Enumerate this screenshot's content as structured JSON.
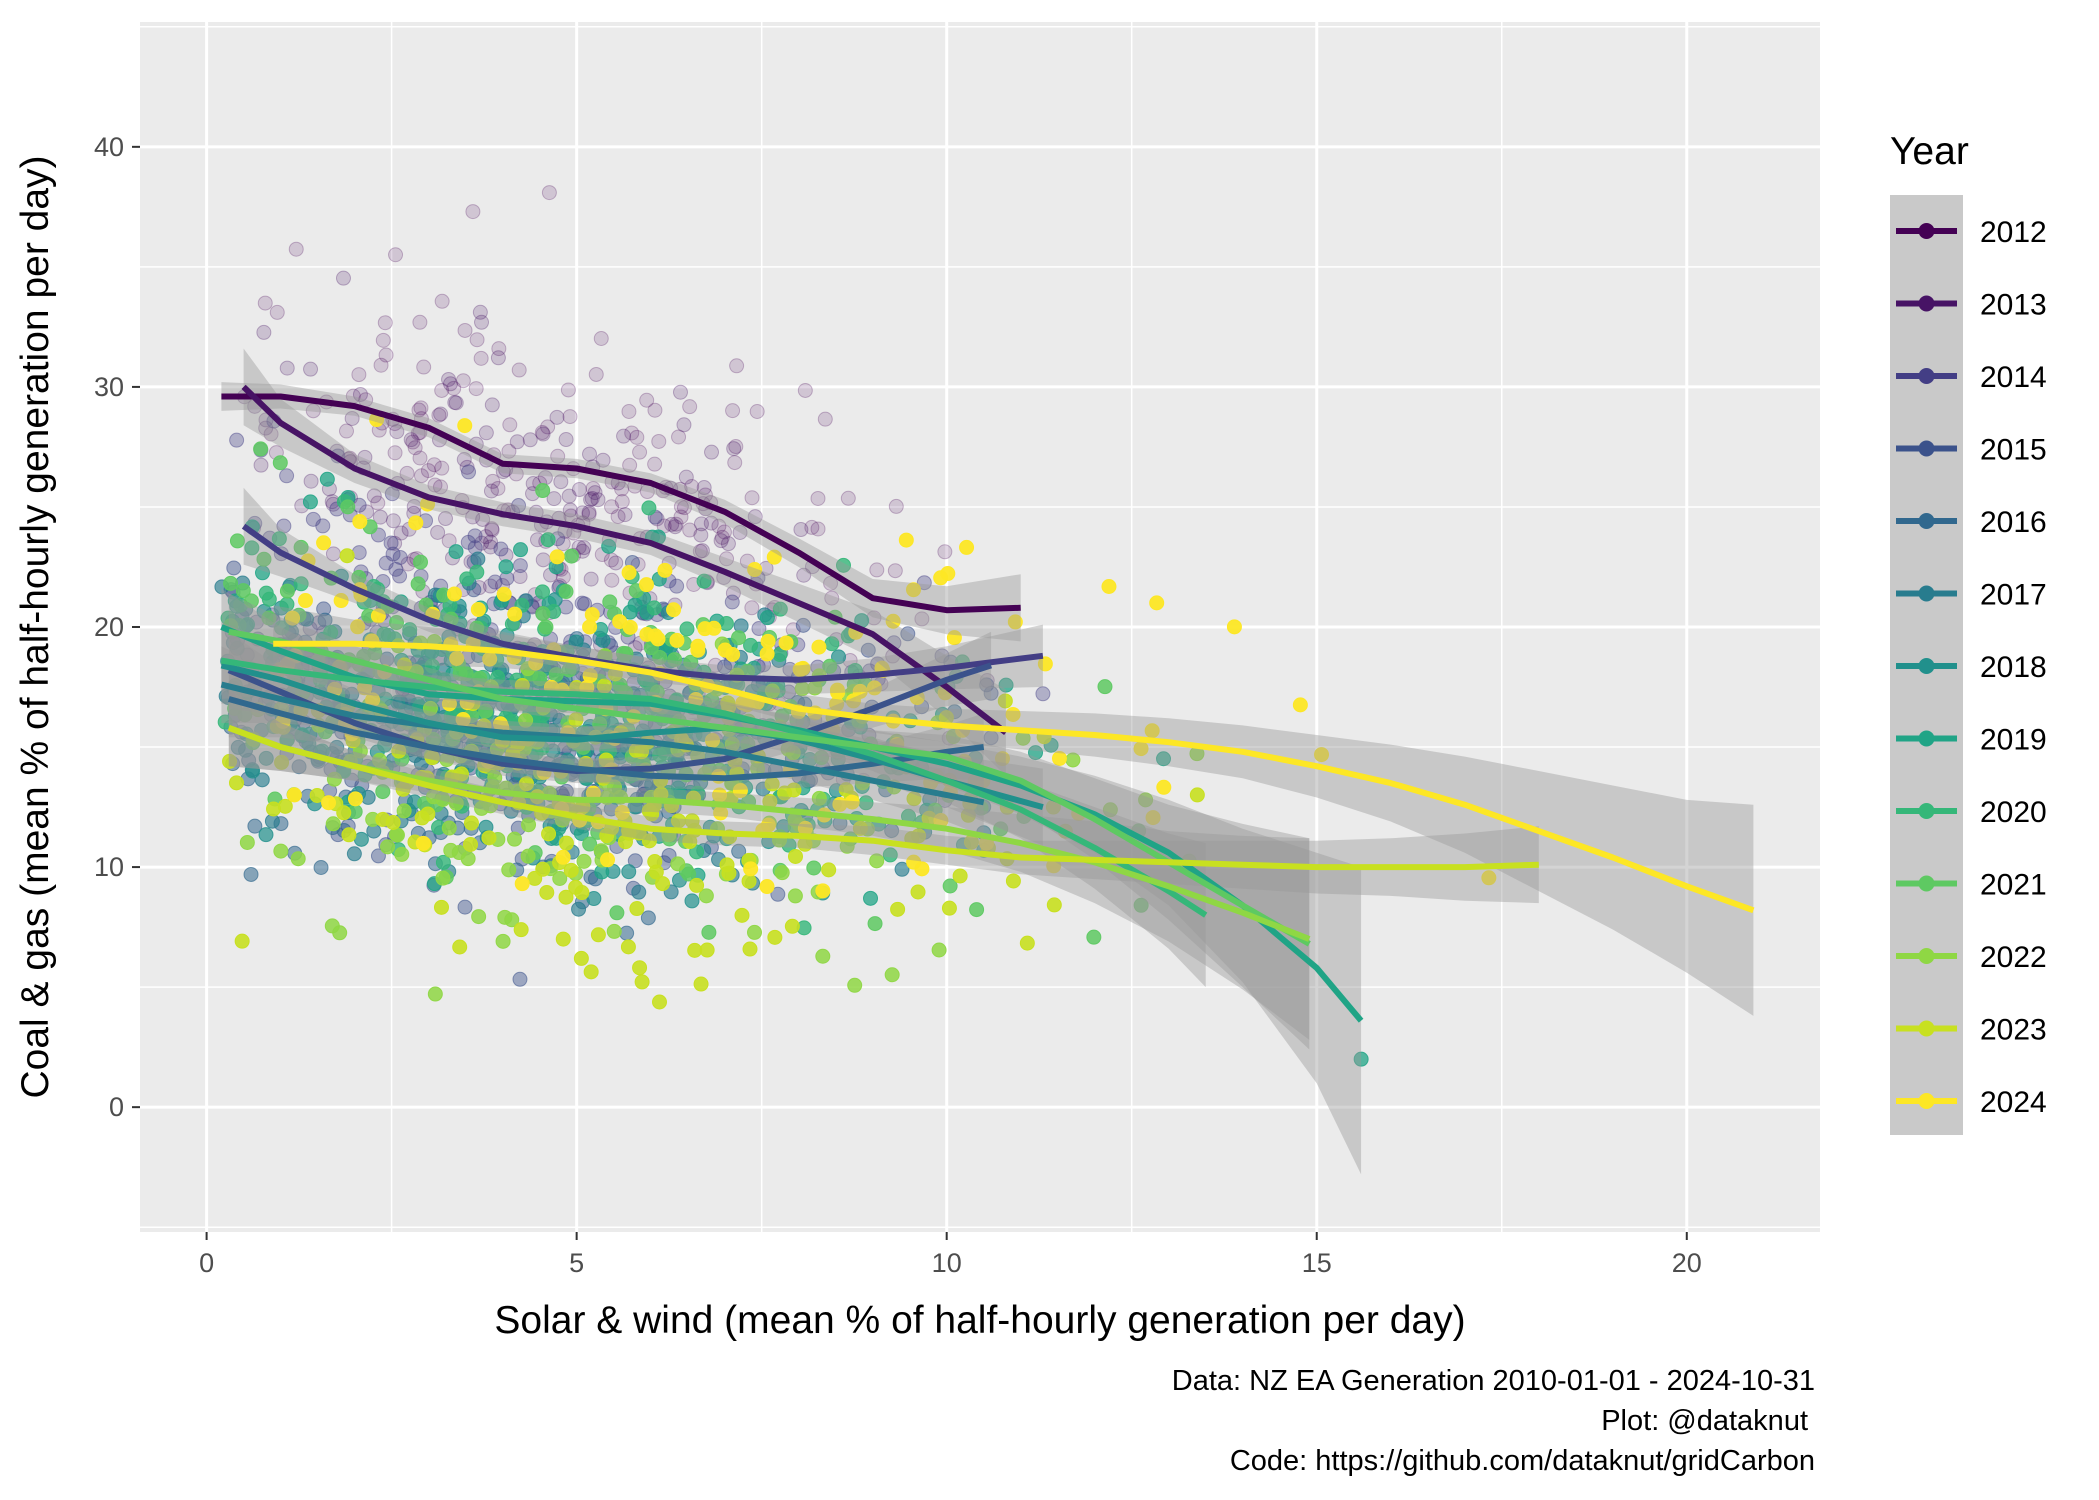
{
  "chart_data": {
    "type": "scatter",
    "title": "",
    "xlabel": "Solar & wind (mean % of half-hourly generation per day)",
    "ylabel": "Coal & gas (mean % of half-hourly generation per day)",
    "xlim": [
      -0.9,
      21.8
    ],
    "ylim": [
      -5.2,
      45.2
    ],
    "x_ticks": [
      0,
      5,
      10,
      15,
      20
    ],
    "y_ticks": [
      0,
      10,
      20,
      30,
      40
    ],
    "grid": true,
    "legend": {
      "title": "Year",
      "placement": "right",
      "entries": [
        "2012",
        "2013",
        "2014",
        "2015",
        "2016",
        "2017",
        "2018",
        "2019",
        "2020",
        "2021",
        "2022",
        "2023",
        "2024"
      ]
    },
    "caption": [
      "Data: NZ EA Generation 2010-01-01 - 2024-10-31",
      "Plot: @dataknut",
      "Code: https://github.com/dataknut/gridCarbon"
    ],
    "series": [
      {
        "name": "2012",
        "color": "#440154",
        "point_alpha": 0.16,
        "point_center": [
          4.6,
          30.0
        ],
        "point_spread": [
          2.6,
          4.6
        ],
        "point_xrange": [
          0.3,
          10.8
        ],
        "smooth": {
          "x": [
            0.2,
            1,
            2,
            3,
            4,
            5,
            6,
            7,
            8,
            9,
            10,
            11
          ],
          "y": [
            29.6,
            29.6,
            29.2,
            28.3,
            26.8,
            26.6,
            26.0,
            24.8,
            23.1,
            21.2,
            20.7,
            20.8
          ]
        },
        "se": [
          0.6,
          0.5,
          0.4,
          0.4,
          0.4,
          0.4,
          0.4,
          0.5,
          0.6,
          0.8,
          1.0,
          1.4
        ]
      },
      {
        "name": "2013",
        "color": "#471365",
        "point_alpha": 0.2,
        "point_center": [
          4.2,
          24.5
        ],
        "point_spread": [
          2.3,
          4.0
        ],
        "point_xrange": [
          0.4,
          10.6
        ],
        "smooth": {
          "x": [
            0.5,
            1,
            2,
            3,
            4,
            5,
            6,
            7,
            8,
            9,
            10,
            10.8
          ],
          "y": [
            30.0,
            28.5,
            26.6,
            25.4,
            24.7,
            24.2,
            23.5,
            22.3,
            21.0,
            19.7,
            17.5,
            15.6
          ]
        },
        "se": [
          1.6,
          1.0,
          0.6,
          0.5,
          0.5,
          0.5,
          0.5,
          0.6,
          0.8,
          1.0,
          1.3,
          1.8
        ]
      },
      {
        "name": "2014",
        "color": "#433E85",
        "point_alpha": 0.35,
        "point_center": [
          4.4,
          20.0
        ],
        "point_spread": [
          2.4,
          3.6
        ],
        "point_xrange": [
          0.4,
          11.3
        ],
        "smooth": {
          "x": [
            0.5,
            1,
            2,
            3,
            4,
            5,
            6,
            7,
            8,
            9,
            10,
            11.3
          ],
          "y": [
            24.2,
            23.1,
            21.6,
            20.3,
            19.3,
            18.7,
            18.2,
            17.9,
            17.8,
            18.0,
            18.3,
            18.8
          ]
        },
        "se": [
          1.6,
          1.0,
          0.6,
          0.5,
          0.5,
          0.5,
          0.5,
          0.5,
          0.6,
          0.7,
          0.9,
          1.3
        ]
      },
      {
        "name": "2015",
        "color": "#3B528B",
        "point_alpha": 0.45,
        "point_center": [
          4.2,
          15.5
        ],
        "point_spread": [
          2.4,
          3.3
        ],
        "point_xrange": [
          0.3,
          10.6
        ],
        "smooth": {
          "x": [
            0.3,
            1,
            2,
            3,
            4,
            5,
            6,
            7,
            8,
            9,
            10,
            10.6
          ],
          "y": [
            18.2,
            17.3,
            16.0,
            15.0,
            14.3,
            14.0,
            14.1,
            14.5,
            15.5,
            16.6,
            17.8,
            18.4
          ]
        },
        "se": [
          1.6,
          1.0,
          0.6,
          0.5,
          0.5,
          0.5,
          0.5,
          0.5,
          0.6,
          0.8,
          1.1,
          1.4
        ]
      },
      {
        "name": "2016",
        "color": "#31688E",
        "point_alpha": 0.55,
        "point_center": [
          4.2,
          15.0
        ],
        "point_spread": [
          2.4,
          3.2
        ],
        "point_xrange": [
          0.3,
          10.5
        ],
        "smooth": {
          "x": [
            0.3,
            1,
            2,
            3,
            4,
            5,
            6,
            7,
            8,
            9,
            10,
            10.5
          ],
          "y": [
            17.0,
            16.4,
            15.6,
            15.0,
            14.5,
            14.1,
            13.8,
            13.7,
            13.9,
            14.3,
            14.8,
            15.0
          ]
        },
        "se": [
          1.6,
          1.0,
          0.6,
          0.5,
          0.5,
          0.5,
          0.5,
          0.5,
          0.6,
          0.8,
          1.1,
          1.4
        ]
      },
      {
        "name": "2017",
        "color": "#287C8E",
        "point_alpha": 0.65,
        "point_center": [
          4.0,
          15.8
        ],
        "point_spread": [
          2.3,
          3.5
        ],
        "point_xrange": [
          0.2,
          10.5
        ],
        "smooth": {
          "x": [
            0.2,
            1,
            2,
            3,
            4,
            5,
            6,
            7,
            8,
            9,
            10,
            10.5
          ],
          "y": [
            17.6,
            17.0,
            16.3,
            15.9,
            15.6,
            15.4,
            15.2,
            14.8,
            14.2,
            13.6,
            13.0,
            12.7
          ]
        },
        "se": [
          1.6,
          1.0,
          0.6,
          0.5,
          0.5,
          0.5,
          0.5,
          0.5,
          0.6,
          0.8,
          1.1,
          1.4
        ]
      },
      {
        "name": "2018",
        "color": "#21908C",
        "point_alpha": 0.7,
        "point_center": [
          4.2,
          16.5
        ],
        "point_spread": [
          2.4,
          3.6
        ],
        "point_xrange": [
          0.2,
          11.3
        ],
        "smooth": {
          "x": [
            0.2,
            1,
            2,
            3,
            4,
            5,
            6,
            7,
            8,
            9,
            10,
            11.3
          ],
          "y": [
            18.4,
            17.8,
            16.8,
            16.0,
            15.4,
            15.3,
            15.6,
            15.8,
            15.3,
            14.5,
            13.6,
            12.5
          ]
        },
        "se": [
          1.6,
          1.0,
          0.6,
          0.5,
          0.5,
          0.5,
          0.5,
          0.5,
          0.6,
          0.8,
          1.1,
          1.6
        ]
      },
      {
        "name": "2019",
        "color": "#20A486",
        "point_alpha": 0.75,
        "point_center": [
          5.0,
          15.5
        ],
        "point_spread": [
          2.8,
          3.8
        ],
        "point_xrange": [
          0.2,
          15.6
        ],
        "smooth": {
          "x": [
            0.2,
            1,
            2,
            3,
            4,
            5,
            6,
            7,
            8,
            9,
            10,
            11,
            12,
            13,
            14,
            15,
            15.6
          ],
          "y": [
            20.0,
            19.0,
            17.9,
            17.2,
            17.0,
            16.9,
            16.8,
            16.3,
            15.7,
            15.0,
            14.3,
            13.4,
            12.2,
            10.6,
            8.4,
            5.8,
            3.6
          ]
        },
        "se": [
          1.6,
          1.0,
          0.6,
          0.5,
          0.5,
          0.5,
          0.5,
          0.5,
          0.6,
          0.7,
          0.9,
          1.2,
          1.6,
          2.2,
          3.2,
          4.8,
          6.4
        ]
      },
      {
        "name": "2020",
        "color": "#35B779",
        "point_alpha": 0.8,
        "point_center": [
          4.6,
          16.0
        ],
        "point_spread": [
          2.6,
          3.8
        ],
        "point_xrange": [
          0.2,
          13.5
        ],
        "smooth": {
          "x": [
            0.2,
            1,
            2,
            3,
            4,
            5,
            6,
            7,
            8,
            9,
            10,
            11,
            12,
            13,
            13.5
          ],
          "y": [
            18.6,
            18.2,
            17.8,
            17.5,
            17.3,
            17.2,
            17.0,
            16.4,
            15.6,
            14.7,
            13.6,
            12.4,
            10.8,
            9.0,
            8.0
          ]
        },
        "se": [
          1.6,
          1.0,
          0.6,
          0.5,
          0.5,
          0.5,
          0.5,
          0.5,
          0.6,
          0.7,
          0.9,
          1.2,
          1.7,
          2.4,
          3.0
        ]
      },
      {
        "name": "2021",
        "color": "#5EC962",
        "point_alpha": 0.85,
        "point_center": [
          5.0,
          15.0
        ],
        "point_spread": [
          2.8,
          4.0
        ],
        "point_xrange": [
          0.3,
          14.9
        ],
        "smooth": {
          "x": [
            0.3,
            1,
            2,
            3,
            4,
            5,
            6,
            7,
            8,
            9,
            10,
            11,
            12,
            13,
            14,
            14.9
          ],
          "y": [
            19.8,
            19.4,
            18.6,
            17.8,
            17.0,
            16.6,
            16.2,
            15.8,
            15.4,
            15.0,
            14.6,
            13.6,
            12.0,
            10.2,
            8.4,
            6.8
          ]
        },
        "se": [
          1.6,
          1.0,
          0.6,
          0.5,
          0.5,
          0.5,
          0.5,
          0.5,
          0.6,
          0.7,
          0.9,
          1.2,
          1.7,
          2.4,
          3.4,
          4.4
        ]
      },
      {
        "name": "2022",
        "color": "#8FD744",
        "point_alpha": 0.85,
        "point_center": [
          5.2,
          13.5
        ],
        "point_spread": [
          3.0,
          4.2
        ],
        "point_xrange": [
          0.3,
          14.9
        ],
        "smooth": {
          "x": [
            0.3,
            1,
            2,
            3,
            4,
            5,
            6,
            7,
            8,
            9,
            10,
            11,
            12,
            13,
            14,
            14.9
          ],
          "y": [
            15.8,
            15.0,
            14.2,
            13.6,
            13.1,
            12.8,
            12.8,
            12.6,
            12.3,
            12.0,
            11.6,
            11.0,
            10.2,
            9.2,
            8.1,
            7.0
          ]
        },
        "se": [
          1.6,
          1.0,
          0.6,
          0.5,
          0.5,
          0.5,
          0.5,
          0.5,
          0.6,
          0.7,
          0.9,
          1.2,
          1.7,
          2.3,
          3.2,
          4.2
        ]
      },
      {
        "name": "2023",
        "color": "#C8E020",
        "point_alpha": 0.9,
        "point_center": [
          5.5,
          11.0
        ],
        "point_spread": [
          3.2,
          3.6
        ],
        "point_xrange": [
          0.3,
          18.0
        ],
        "smooth": {
          "x": [
            0.3,
            1,
            2,
            3,
            4,
            5,
            6,
            7,
            8,
            9,
            10,
            11,
            12,
            13,
            14,
            15,
            16,
            17,
            18
          ],
          "y": [
            15.8,
            15.0,
            14.2,
            13.4,
            12.7,
            12.1,
            11.6,
            11.4,
            11.3,
            11.1,
            10.7,
            10.4,
            10.3,
            10.2,
            10.1,
            10.0,
            10.0,
            10.0,
            10.1
          ]
        },
        "se": [
          1.6,
          1.0,
          0.6,
          0.5,
          0.5,
          0.5,
          0.5,
          0.5,
          0.5,
          0.6,
          0.6,
          0.7,
          0.8,
          0.9,
          1.0,
          1.1,
          1.2,
          1.4,
          1.6
        ]
      },
      {
        "name": "2024",
        "color": "#FDE725",
        "point_alpha": 0.95,
        "point_center": [
          6.0,
          18.0
        ],
        "point_spread": [
          3.6,
          4.6
        ],
        "point_xrange": [
          0.9,
          20.9
        ],
        "smooth": {
          "x": [
            0.9,
            2,
            3,
            4,
            5,
            6,
            7,
            8,
            9,
            10,
            11,
            12,
            13,
            14,
            15,
            16,
            17,
            18,
            19,
            20,
            20.9
          ],
          "y": [
            19.3,
            19.3,
            19.2,
            19.0,
            18.6,
            18.1,
            17.4,
            16.6,
            16.2,
            15.9,
            15.7,
            15.5,
            15.2,
            14.8,
            14.2,
            13.5,
            12.6,
            11.5,
            10.4,
            9.2,
            8.2
          ]
        },
        "se": [
          1.6,
          1.0,
          0.8,
          0.7,
          0.6,
          0.6,
          0.6,
          0.6,
          0.6,
          0.7,
          0.8,
          0.9,
          1.0,
          1.1,
          1.3,
          1.6,
          2.0,
          2.5,
          3.0,
          3.6,
          4.4
        ]
      }
    ]
  }
}
